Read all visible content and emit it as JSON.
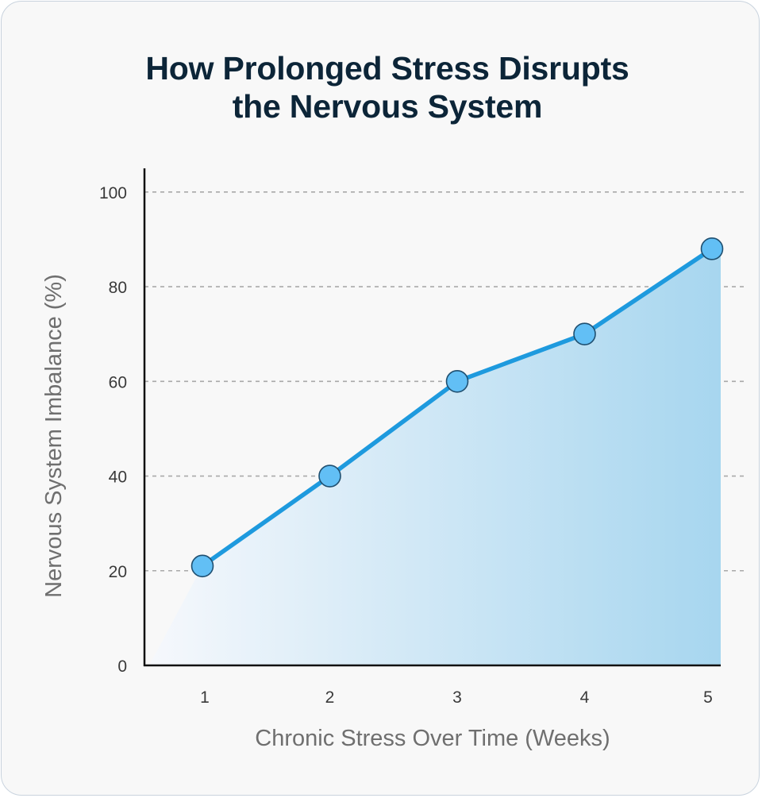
{
  "title_lines": [
    "How Prolonged Stress Disrupts",
    "the Nervous System"
  ],
  "colors": {
    "line": "#1e9ade",
    "marker_fill": "#62bff5",
    "marker_stroke": "#1f4f70",
    "area_light": "#f6f8fc",
    "area_dark": "#a7d6ef",
    "grid": "#a9a9a9",
    "axis": "#111111",
    "title": "#0c2538"
  },
  "chart_data": {
    "type": "area",
    "title": "How Prolonged Stress Disrupts the Nervous System",
    "x": [
      1,
      2,
      3,
      4,
      5
    ],
    "categories": [
      "1",
      "2",
      "3",
      "4",
      "5"
    ],
    "series": [
      {
        "name": "Nervous System Imbalance",
        "values": [
          21,
          40,
          60,
          70,
          88
        ]
      }
    ],
    "xlabel": "Chronic Stress Over Time (Weeks)",
    "ylabel": "Nervous System Imbalance (%)",
    "ylim": [
      0,
      105
    ],
    "yticks": [
      0,
      20,
      40,
      60,
      80,
      100
    ],
    "ytick_labels": [
      "0",
      "20",
      "40",
      "60",
      "80",
      "100"
    ],
    "grid": "horizontal-dashed",
    "legend": "none"
  }
}
